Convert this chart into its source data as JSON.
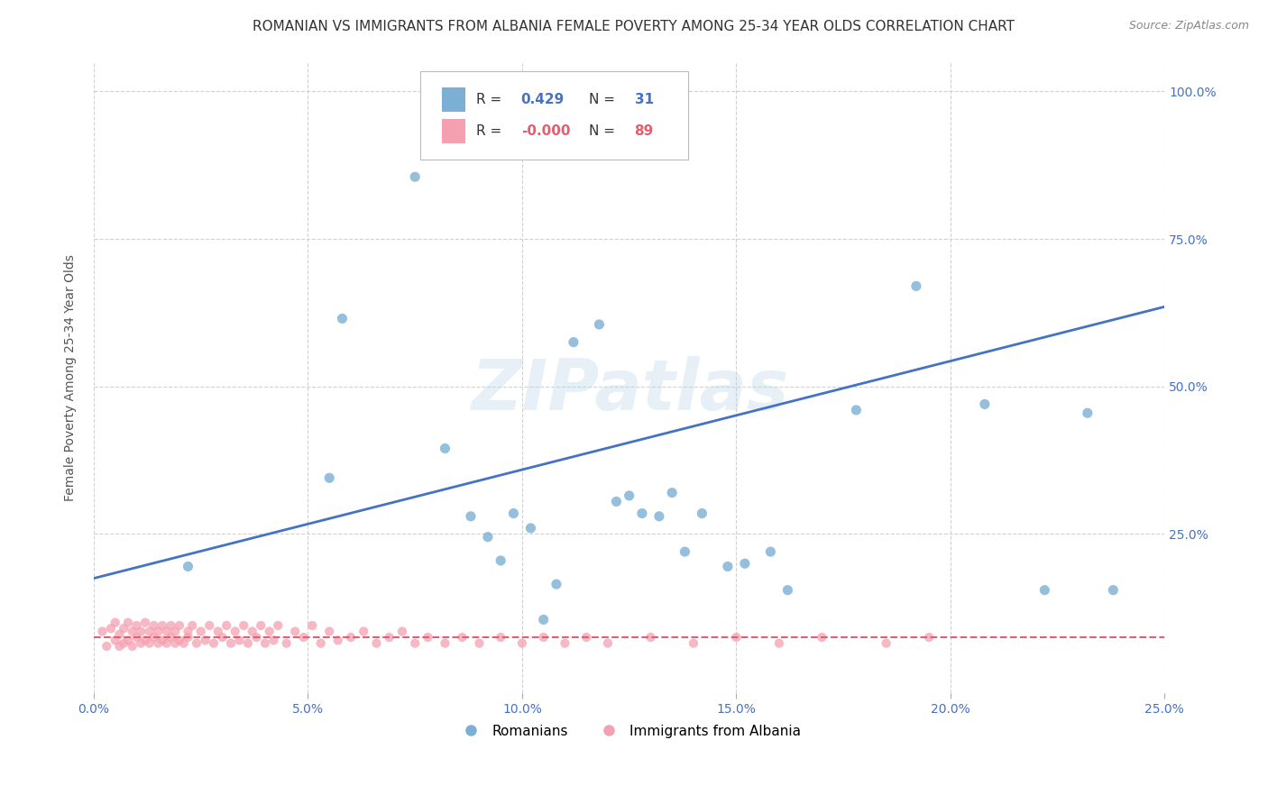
{
  "title": "ROMANIAN VS IMMIGRANTS FROM ALBANIA FEMALE POVERTY AMONG 25-34 YEAR OLDS CORRELATION CHART",
  "source": "Source: ZipAtlas.com",
  "ylabel": "Female Poverty Among 25-34 Year Olds",
  "xlim": [
    0.0,
    0.25
  ],
  "ylim": [
    -0.02,
    1.05
  ],
  "xtick_labels": [
    "0.0%",
    "5.0%",
    "10.0%",
    "15.0%",
    "20.0%",
    "25.0%"
  ],
  "xtick_values": [
    0.0,
    0.05,
    0.1,
    0.15,
    0.2,
    0.25
  ],
  "ytick_labels": [
    "100.0%",
    "75.0%",
    "50.0%",
    "25.0%"
  ],
  "ytick_values": [
    1.0,
    0.75,
    0.5,
    0.25
  ],
  "legend_entries": [
    "Romanians",
    "Immigrants from Albania"
  ],
  "romanian_R": 0.429,
  "romanian_N": 31,
  "albanian_R": -0.0,
  "albanian_N": 89,
  "blue_color": "#7BAFD4",
  "pink_color": "#F4A0B0",
  "blue_line_color": "#4472C4",
  "pink_line_color": "#E06070",
  "background_color": "#FFFFFF",
  "grid_color": "#CCCCCC",
  "watermark": "ZIPatlas",
  "romanian_x": [
    0.022,
    0.055,
    0.058,
    0.075,
    0.082,
    0.088,
    0.092,
    0.095,
    0.098,
    0.102,
    0.105,
    0.108,
    0.112,
    0.118,
    0.122,
    0.125,
    0.128,
    0.132,
    0.135,
    0.138,
    0.142,
    0.148,
    0.152,
    0.158,
    0.162,
    0.178,
    0.192,
    0.208,
    0.222,
    0.232,
    0.238
  ],
  "romanian_y": [
    0.195,
    0.345,
    0.615,
    0.855,
    0.395,
    0.28,
    0.245,
    0.205,
    0.285,
    0.26,
    0.105,
    0.165,
    0.575,
    0.605,
    0.305,
    0.315,
    0.285,
    0.28,
    0.32,
    0.22,
    0.285,
    0.195,
    0.2,
    0.22,
    0.155,
    0.46,
    0.67,
    0.47,
    0.155,
    0.455,
    0.155
  ],
  "albanian_x": [
    0.002,
    0.003,
    0.004,
    0.005,
    0.005,
    0.006,
    0.006,
    0.007,
    0.007,
    0.008,
    0.008,
    0.009,
    0.009,
    0.01,
    0.01,
    0.011,
    0.011,
    0.012,
    0.012,
    0.013,
    0.013,
    0.014,
    0.014,
    0.015,
    0.015,
    0.016,
    0.016,
    0.017,
    0.017,
    0.018,
    0.018,
    0.019,
    0.019,
    0.02,
    0.02,
    0.021,
    0.022,
    0.022,
    0.023,
    0.024,
    0.025,
    0.026,
    0.027,
    0.028,
    0.029,
    0.03,
    0.031,
    0.032,
    0.033,
    0.034,
    0.035,
    0.036,
    0.037,
    0.038,
    0.039,
    0.04,
    0.041,
    0.042,
    0.043,
    0.045,
    0.047,
    0.049,
    0.051,
    0.053,
    0.055,
    0.057,
    0.06,
    0.063,
    0.066,
    0.069,
    0.072,
    0.075,
    0.078,
    0.082,
    0.086,
    0.09,
    0.095,
    0.1,
    0.105,
    0.11,
    0.115,
    0.12,
    0.13,
    0.14,
    0.15,
    0.16,
    0.17,
    0.185,
    0.195
  ],
  "albanian_y": [
    0.085,
    0.06,
    0.09,
    0.07,
    0.1,
    0.06,
    0.08,
    0.09,
    0.065,
    0.07,
    0.1,
    0.06,
    0.085,
    0.075,
    0.095,
    0.065,
    0.085,
    0.07,
    0.1,
    0.065,
    0.085,
    0.075,
    0.095,
    0.065,
    0.085,
    0.07,
    0.095,
    0.065,
    0.085,
    0.075,
    0.095,
    0.065,
    0.085,
    0.07,
    0.095,
    0.065,
    0.085,
    0.075,
    0.095,
    0.065,
    0.085,
    0.07,
    0.095,
    0.065,
    0.085,
    0.075,
    0.095,
    0.065,
    0.085,
    0.07,
    0.095,
    0.065,
    0.085,
    0.075,
    0.095,
    0.065,
    0.085,
    0.07,
    0.095,
    0.065,
    0.085,
    0.075,
    0.095,
    0.065,
    0.085,
    0.07,
    0.075,
    0.085,
    0.065,
    0.075,
    0.085,
    0.065,
    0.075,
    0.065,
    0.075,
    0.065,
    0.075,
    0.065,
    0.075,
    0.065,
    0.075,
    0.065,
    0.075,
    0.065,
    0.075,
    0.065,
    0.075,
    0.065,
    0.075
  ],
  "blue_line_x0": 0.0,
  "blue_line_y0": 0.175,
  "blue_line_x1": 0.25,
  "blue_line_y1": 0.635,
  "pink_line_x0": 0.0,
  "pink_line_y0": 0.075,
  "pink_line_x1": 0.25,
  "pink_line_y1": 0.075
}
